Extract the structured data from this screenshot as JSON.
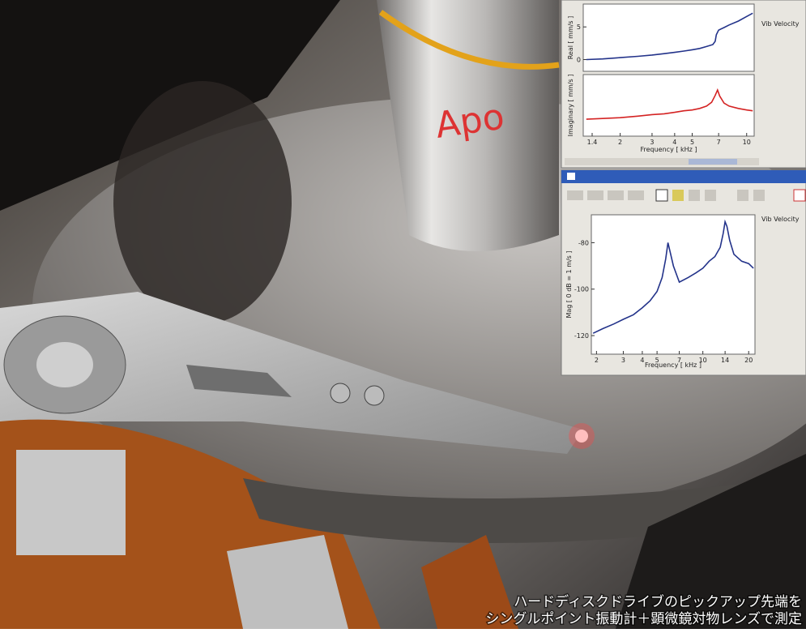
{
  "caption": [
    "ハードディスクドライブのピックアップ先端を",
    "シングルポイント振動計＋顕微鏡対物レンズで測定"
  ],
  "chart_data": [
    {
      "type": "line",
      "ylabel": "Real [ mm/s ]",
      "xlog": true,
      "xlim": [
        1.25,
        11
      ],
      "ylim": [
        -1.8,
        8.5
      ],
      "yticks": [
        0,
        5
      ],
      "x": [
        1.3,
        1.6,
        2,
        2.5,
        3,
        3.5,
        4,
        4.5,
        5,
        5.5,
        6,
        6.5,
        6.7,
        6.8,
        7,
        7.5,
        8,
        9,
        10,
        10.8
      ],
      "series": [
        {
          "name": "Vib Velocity",
          "color": "#23338a",
          "values": [
            0,
            0.1,
            0.3,
            0.5,
            0.7,
            0.9,
            1.1,
            1.3,
            1.5,
            1.7,
            2,
            2.3,
            2.8,
            3.8,
            4.5,
            4.9,
            5.3,
            5.9,
            6.6,
            7.1
          ]
        }
      ]
    },
    {
      "type": "line",
      "ylabel": "Imaginary [ mm/s ]",
      "xlabel": "Frequency [ kHz ]",
      "xlog": true,
      "xlim": [
        1.25,
        11
      ],
      "ylim": [
        -1,
        7
      ],
      "xticks": [
        1.4,
        2,
        3,
        4,
        5,
        7,
        10
      ],
      "x": [
        1.3,
        1.6,
        2,
        2.5,
        3,
        3.5,
        4,
        4.5,
        5,
        5.5,
        6,
        6.4,
        6.7,
        6.9,
        7.1,
        7.5,
        8,
        9,
        10,
        10.8
      ],
      "series": [
        {
          "color": "#d42323",
          "values": [
            1.2,
            1.3,
            1.4,
            1.6,
            1.8,
            1.9,
            2.1,
            2.3,
            2.4,
            2.6,
            2.9,
            3.4,
            4.3,
            5,
            4.2,
            3.3,
            2.9,
            2.6,
            2.4,
            2.3
          ]
        }
      ]
    },
    {
      "type": "line",
      "ylabel": "Mag [ 0 dB = 1 m/s ]",
      "xlabel": "Frequency [ kHz ]",
      "xlog": true,
      "xlim": [
        1.85,
        22
      ],
      "ylim": [
        -128,
        -68
      ],
      "xticks": [
        2,
        3,
        4,
        5,
        7,
        10,
        14,
        20
      ],
      "yticks": [
        -80,
        -100,
        -120
      ],
      "x": [
        1.9,
        2.2,
        2.6,
        3,
        3.5,
        4,
        4.5,
        5,
        5.4,
        5.7,
        5.9,
        6.1,
        6.4,
        7,
        8,
        9,
        10,
        11,
        12,
        13,
        13.6,
        14,
        14.4,
        15,
        16,
        18,
        20,
        21.5
      ],
      "series": [
        {
          "name": "Vib Velocity",
          "color": "#23338a",
          "values": [
            -119,
            -117,
            -115,
            -113,
            -111,
            -108,
            -105,
            -101,
            -95,
            -87,
            -80,
            -84,
            -90,
            -97,
            -95,
            -93,
            -91,
            -88,
            -86,
            -82,
            -76,
            -71,
            -73,
            -79,
            -85,
            -88,
            -89,
            -91
          ]
        }
      ]
    }
  ]
}
